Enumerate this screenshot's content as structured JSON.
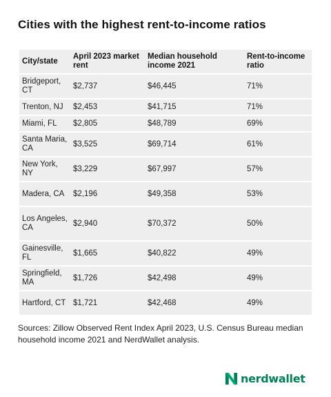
{
  "title": "Cities with the highest rent-to-income ratios",
  "table": {
    "headers": [
      "City/state",
      "April 2023 market rent",
      "Median household income 2021",
      "Rent-to-income ratio"
    ],
    "rows": [
      {
        "city": "Bridgeport, CT",
        "rent": "$2,737",
        "income": "$46,445",
        "ratio": "71%"
      },
      {
        "city": "Trenton, NJ",
        "rent": "$2,453",
        "income": "$41,715",
        "ratio": "71%"
      },
      {
        "city": "Miami, FL",
        "rent": "$2,805",
        "income": "$48,789",
        "ratio": "69%"
      },
      {
        "city": "Santa Maria, CA",
        "rent": "$3,525",
        "income": "$69,714",
        "ratio": "61%"
      },
      {
        "city": "New York, NY",
        "rent": "$3,229",
        "income": "$67,997",
        "ratio": "57%"
      },
      {
        "city": "Madera, CA",
        "rent": "$2,196",
        "income": "$49,358",
        "ratio": "53%"
      },
      {
        "city": "Los Angeles, CA",
        "rent": "$2,940",
        "income": "$70,372",
        "ratio": "50%"
      },
      {
        "city": "Gainesville, FL",
        "rent": "$1,665",
        "income": "$40,822",
        "ratio": "49%"
      },
      {
        "city": "Springfield, MA",
        "rent": "$1,726",
        "income": "$42,498",
        "ratio": "49%"
      },
      {
        "city": "Hartford, CT",
        "rent": "$1,721",
        "income": "$42,468",
        "ratio": "49%"
      }
    ]
  },
  "sources": "Sources: Zillow Observed Rent Index April 2023, U.S. Census Bureau median household income 2021 and NerdWallet analysis.",
  "brand": {
    "name": "nerdwallet",
    "icon": "nerdwallet-logo-icon",
    "color": "#008255"
  }
}
